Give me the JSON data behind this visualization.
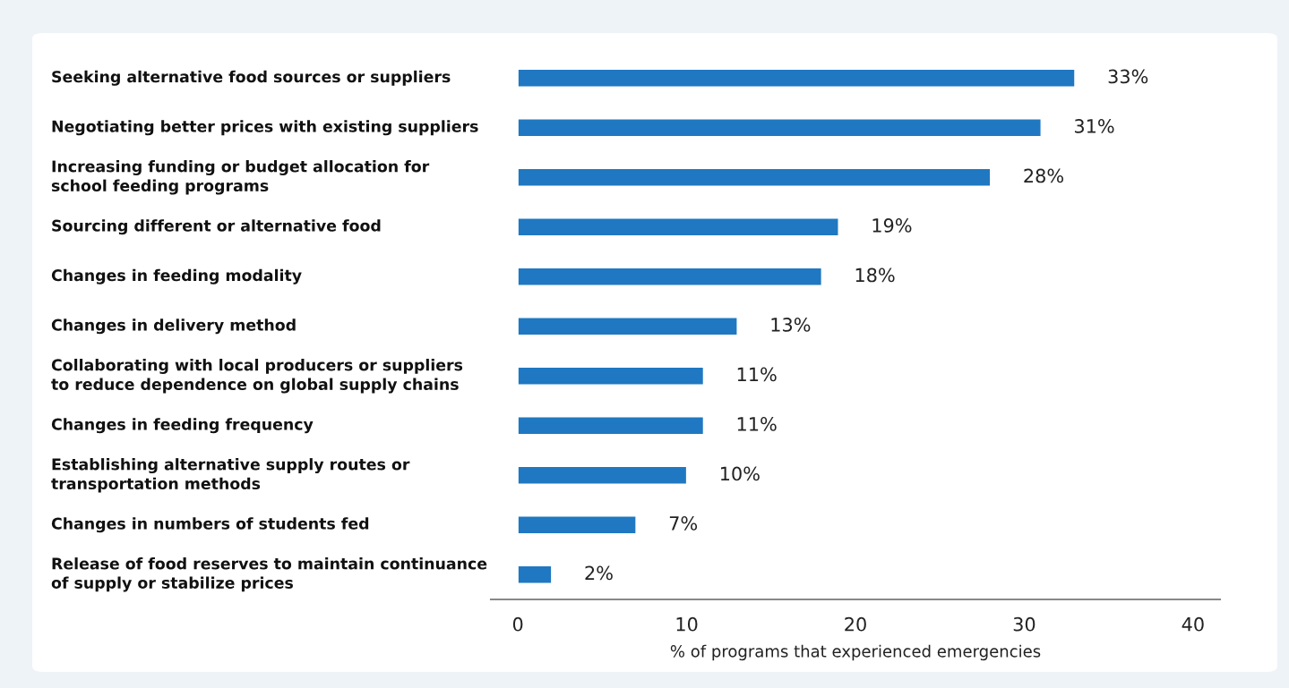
{
  "chart_data": {
    "type": "bar",
    "orientation": "horizontal",
    "categories": [
      "Seeking alternative food sources or suppliers",
      "Negotiating better prices with existing suppliers",
      "Increasing funding or budget allocation for\nschool feeding programs",
      "Sourcing different or alternative food",
      "Changes in feeding modality",
      "Changes in delivery method",
      "Collaborating with local producers or suppliers\nto reduce dependence on global supply chains",
      "Changes in feeding frequency",
      "Establishing alternative supply routes or\ntransportation methods",
      "Changes in numbers of students fed",
      "Release of food reserves to maintain continuance\nof supply or stabilize prices"
    ],
    "values": [
      33,
      31,
      28,
      19,
      18,
      13,
      11,
      11,
      10,
      7,
      2
    ],
    "value_labels": [
      "33%",
      "31%",
      "28%",
      "19%",
      "18%",
      "13%",
      "11%",
      "11%",
      "10%",
      "7%",
      "2%"
    ],
    "color": "#1f78c1",
    "xlabel": "% of programs that experienced emergencies",
    "xlim": [
      -1.6,
      41.6
    ],
    "xticks": [
      0,
      10,
      20,
      30,
      40
    ],
    "grid": false,
    "legend": false
  }
}
